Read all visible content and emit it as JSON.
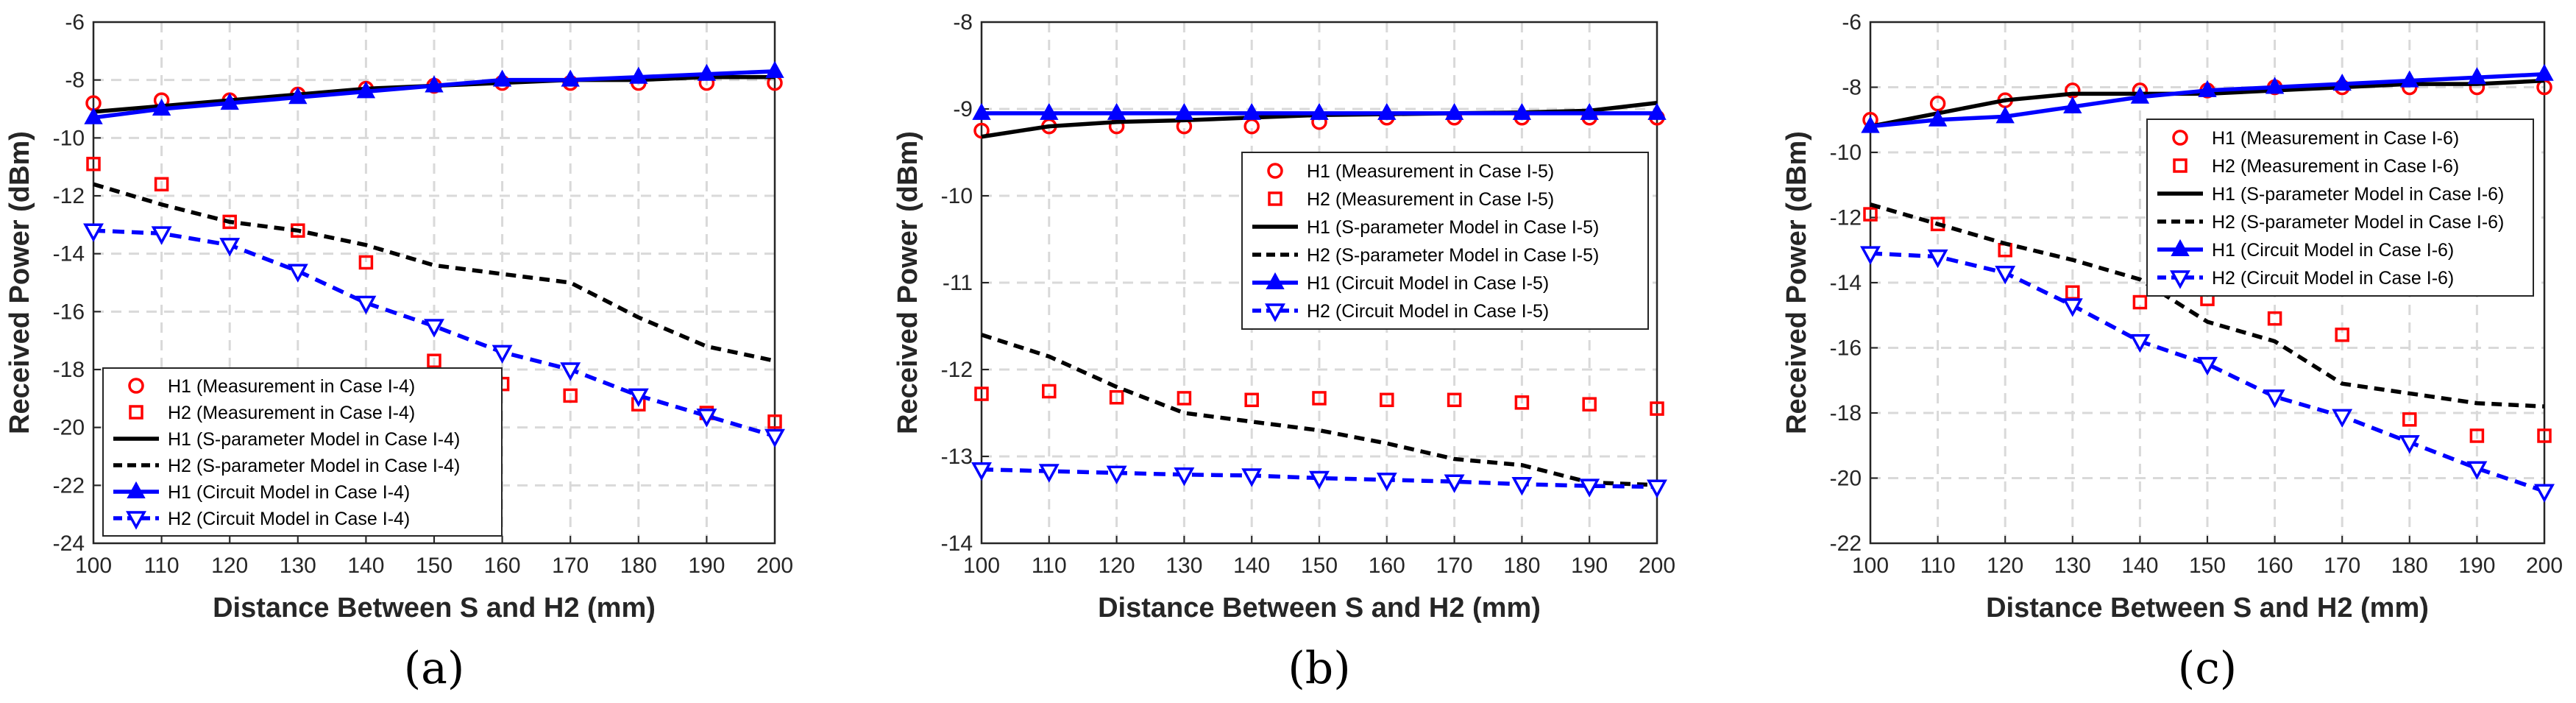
{
  "colors": {
    "measurement": "#ff0000",
    "s_parameter": "#000000",
    "circuit": "#0000ff",
    "grid": "#d9d9d9",
    "axis": "#262626"
  },
  "chart_data": [
    {
      "type": "line",
      "caption": "(a)",
      "xlabel": "Distance Between S and H2 (mm)",
      "ylabel": "Received Power (dBm)",
      "x": [
        100,
        110,
        120,
        130,
        140,
        150,
        160,
        170,
        180,
        190,
        200
      ],
      "xlim": [
        100,
        200
      ],
      "ylim": [
        -24,
        -6
      ],
      "xticks": [
        "100",
        "110",
        "120",
        "130",
        "140",
        "150",
        "160",
        "170",
        "180",
        "190",
        "200"
      ],
      "yticks": [
        "-6",
        "-8",
        "-10",
        "-12",
        "-14",
        "-16",
        "-18",
        "-20",
        "-22",
        "-24"
      ],
      "grid": true,
      "legend_position": "bottom-left",
      "series": [
        {
          "name": "H1 (Measurement in Case I-4)",
          "style": "circle",
          "values": [
            -8.8,
            -8.7,
            -8.7,
            -8.5,
            -8.3,
            -8.2,
            -8.1,
            -8.1,
            -8.1,
            -8.1,
            -8.1
          ]
        },
        {
          "name": "H2 (Measurement in Case I-4)",
          "style": "square",
          "values": [
            -10.9,
            -11.6,
            -12.9,
            -13.2,
            -14.3,
            -17.7,
            -18.5,
            -18.9,
            -19.2,
            -19.5,
            -19.8
          ]
        },
        {
          "name": "H1 (S-parameter Model in Case I-4)",
          "style": "solid",
          "values": [
            -9.1,
            -8.9,
            -8.7,
            -8.5,
            -8.3,
            -8.2,
            -8.1,
            -8.0,
            -8.0,
            -7.9,
            -7.9
          ]
        },
        {
          "name": "H2 (S-parameter Model in Case I-4)",
          "style": "dashed",
          "values": [
            -11.6,
            -12.3,
            -12.9,
            -13.2,
            -13.7,
            -14.4,
            -14.7,
            -15.0,
            -16.2,
            -17.2,
            -17.7
          ]
        },
        {
          "name": "H1 (Circuit Model in Case I-4)",
          "style": "triangle-up",
          "values": [
            -9.3,
            -9.0,
            -8.8,
            -8.6,
            -8.4,
            -8.2,
            -8.0,
            -8.0,
            -7.9,
            -7.8,
            -7.7
          ]
        },
        {
          "name": "H2 (Circuit Model in Case I-4)",
          "style": "triangle-down",
          "values": [
            -13.2,
            -13.3,
            -13.7,
            -14.6,
            -15.7,
            -16.5,
            -17.4,
            -18.0,
            -18.9,
            -19.6,
            -20.3
          ]
        }
      ]
    },
    {
      "type": "line",
      "caption": "(b)",
      "xlabel": "Distance Between S and H2 (mm)",
      "ylabel": "Received Power (dBm)",
      "x": [
        100,
        110,
        120,
        130,
        140,
        150,
        160,
        170,
        180,
        190,
        200
      ],
      "xlim": [
        100,
        200
      ],
      "ylim": [
        -14,
        -8
      ],
      "xticks": [
        "100",
        "110",
        "120",
        "130",
        "140",
        "150",
        "160",
        "170",
        "180",
        "190",
        "200"
      ],
      "yticks": [
        "-8",
        "-9",
        "-10",
        "-11",
        "-12",
        "-13",
        "-14"
      ],
      "grid": true,
      "legend_position": "top-right",
      "series": [
        {
          "name": "H1 (Measurement in Case I-5)",
          "style": "circle",
          "values": [
            -9.25,
            -9.2,
            -9.2,
            -9.2,
            -9.2,
            -9.15,
            -9.1,
            -9.1,
            -9.1,
            -9.1,
            -9.1
          ]
        },
        {
          "name": "H2 (Measurement in Case I-5)",
          "style": "square",
          "values": [
            -12.28,
            -12.25,
            -12.32,
            -12.33,
            -12.35,
            -12.33,
            -12.35,
            -12.35,
            -12.38,
            -12.4,
            -12.45
          ]
        },
        {
          "name": "H1 (S-parameter Model in Case I-5)",
          "style": "solid",
          "values": [
            -9.32,
            -9.2,
            -9.15,
            -9.13,
            -9.1,
            -9.07,
            -9.06,
            -9.05,
            -9.04,
            -9.02,
            -8.93
          ]
        },
        {
          "name": "H2 (S-parameter Model in Case I-5)",
          "style": "dashed",
          "values": [
            -11.6,
            -11.85,
            -12.2,
            -12.5,
            -12.6,
            -12.7,
            -12.85,
            -13.03,
            -13.1,
            -13.3,
            -13.33
          ]
        },
        {
          "name": "H1 (Circuit Model in Case I-5)",
          "style": "triangle-up",
          "values": [
            -9.05,
            -9.05,
            -9.05,
            -9.05,
            -9.05,
            -9.05,
            -9.05,
            -9.05,
            -9.05,
            -9.05,
            -9.05
          ]
        },
        {
          "name": "H2 (Circuit Model in Case I-5)",
          "style": "triangle-down",
          "values": [
            -13.15,
            -13.17,
            -13.19,
            -13.21,
            -13.22,
            -13.25,
            -13.27,
            -13.29,
            -13.32,
            -13.34,
            -13.35
          ]
        }
      ]
    },
    {
      "type": "line",
      "caption": "(c)",
      "xlabel": "Distance Between S and H2 (mm)",
      "ylabel": "Received Power (dBm)",
      "x": [
        100,
        110,
        120,
        130,
        140,
        150,
        160,
        170,
        180,
        190,
        200
      ],
      "xlim": [
        100,
        200
      ],
      "ylim": [
        -22,
        -6
      ],
      "xticks": [
        "100",
        "110",
        "120",
        "130",
        "140",
        "150",
        "160",
        "170",
        "180",
        "190",
        "200"
      ],
      "yticks": [
        "-6",
        "-8",
        "-10",
        "-12",
        "-14",
        "-16",
        "-18",
        "-20",
        "-22"
      ],
      "grid": true,
      "legend_position": "top-right",
      "series": [
        {
          "name": "H1 (Measurement in Case I-6)",
          "style": "circle",
          "values": [
            -9.0,
            -8.5,
            -8.4,
            -8.1,
            -8.1,
            -8.1,
            -8.0,
            -8.0,
            -8.0,
            -8.0,
            -8.0
          ]
        },
        {
          "name": "H2 (Measurement in Case I-6)",
          "style": "square",
          "values": [
            -11.9,
            -12.2,
            -13.0,
            -14.3,
            -14.6,
            -14.5,
            -15.1,
            -15.6,
            -18.2,
            -18.7,
            -18.7
          ]
        },
        {
          "name": "H1 (S-parameter Model in Case I-6)",
          "style": "solid",
          "values": [
            -9.2,
            -8.8,
            -8.4,
            -8.2,
            -8.2,
            -8.2,
            -8.1,
            -8.0,
            -7.9,
            -7.9,
            -7.8
          ]
        },
        {
          "name": "H2 (S-parameter Model in Case I-6)",
          "style": "dashed",
          "values": [
            -11.6,
            -12.2,
            -12.8,
            -13.3,
            -13.9,
            -15.2,
            -15.8,
            -17.1,
            -17.4,
            -17.7,
            -17.8
          ]
        },
        {
          "name": "H1 (Circuit Model in Case I-6)",
          "style": "triangle-up",
          "values": [
            -9.2,
            -9.0,
            -8.9,
            -8.6,
            -8.3,
            -8.1,
            -8.0,
            -7.9,
            -7.8,
            -7.7,
            -7.6
          ]
        },
        {
          "name": "H2 (Circuit Model in Case I-6)",
          "style": "triangle-down",
          "values": [
            -13.1,
            -13.2,
            -13.7,
            -14.7,
            -15.8,
            -16.5,
            -17.5,
            -18.1,
            -18.9,
            -19.7,
            -20.4
          ]
        }
      ]
    }
  ]
}
